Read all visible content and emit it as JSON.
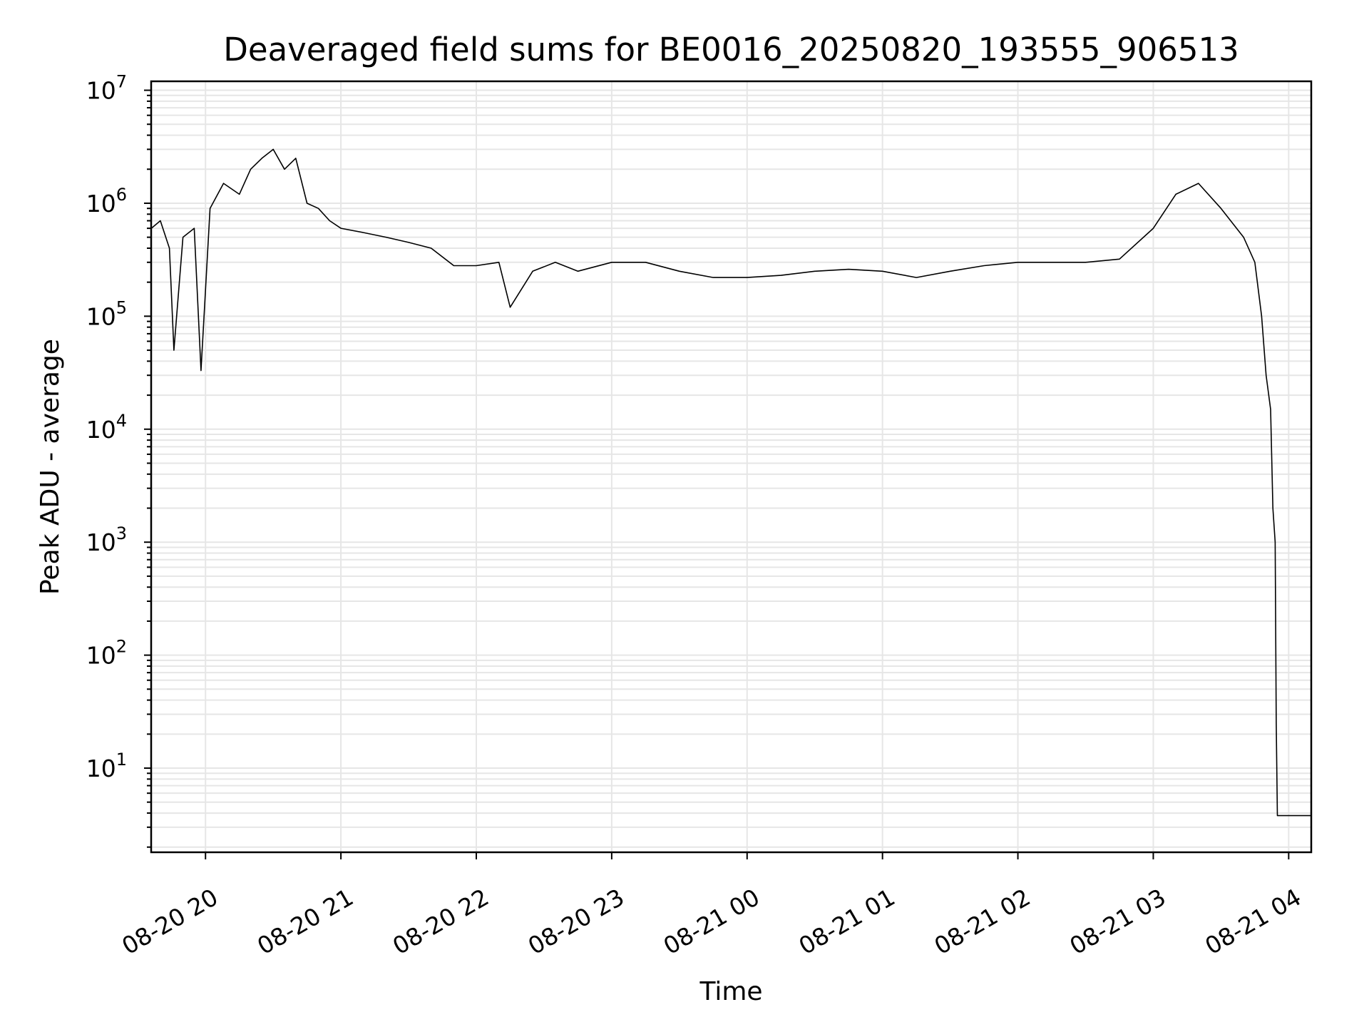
{
  "chart_data": {
    "type": "line",
    "title": "Deaveraged field sums for BE0016_20250820_193555_906513",
    "xlabel": "Time",
    "ylabel": "Peak ADU - average",
    "yscale": "log",
    "grid": true,
    "grid_color": "#e6e6e6",
    "line_color": "#000000",
    "x_start": "2025-08-20 19:35:55",
    "x_end": "2025-08-21 04:10:00",
    "xlim": [
      "2025-08-20 19:35:55",
      "2025-08-21 04:10:00"
    ],
    "ylim": [
      1.8,
      12000000
    ],
    "x_ticks": [
      {
        "value": "2025-08-20 20:00",
        "label": "08-20 20"
      },
      {
        "value": "2025-08-20 21:00",
        "label": "08-20 21"
      },
      {
        "value": "2025-08-20 22:00",
        "label": "08-20 22"
      },
      {
        "value": "2025-08-20 23:00",
        "label": "08-20 23"
      },
      {
        "value": "2025-08-21 00:00",
        "label": "08-21 00"
      },
      {
        "value": "2025-08-21 01:00",
        "label": "08-21 01"
      },
      {
        "value": "2025-08-21 02:00",
        "label": "08-21 02"
      },
      {
        "value": "2025-08-21 03:00",
        "label": "08-21 03"
      },
      {
        "value": "2025-08-21 04:00",
        "label": "08-21 04"
      }
    ],
    "y_ticks": [
      {
        "value": 10,
        "base": "10",
        "exp": "1"
      },
      {
        "value": 100,
        "base": "10",
        "exp": "2"
      },
      {
        "value": 1000,
        "base": "10",
        "exp": "3"
      },
      {
        "value": 10000,
        "base": "10",
        "exp": "4"
      },
      {
        "value": 100000,
        "base": "10",
        "exp": "5"
      },
      {
        "value": 1000000,
        "base": "10",
        "exp": "6"
      },
      {
        "value": 10000000,
        "base": "10",
        "exp": "7"
      }
    ],
    "series": [
      {
        "points": [
          [
            "2025-08-20 19:36",
            600000
          ],
          [
            "2025-08-20 19:40",
            700000
          ],
          [
            "2025-08-20 19:44",
            400000
          ],
          [
            "2025-08-20 19:46",
            50000
          ],
          [
            "2025-08-20 19:50",
            500000
          ],
          [
            "2025-08-20 19:55",
            600000
          ],
          [
            "2025-08-20 19:58",
            33000
          ],
          [
            "2025-08-20 20:02",
            900000
          ],
          [
            "2025-08-20 20:08",
            1500000
          ],
          [
            "2025-08-20 20:15",
            1200000
          ],
          [
            "2025-08-20 20:20",
            2000000
          ],
          [
            "2025-08-20 20:25",
            2500000
          ],
          [
            "2025-08-20 20:30",
            3000000
          ],
          [
            "2025-08-20 20:35",
            2000000
          ],
          [
            "2025-08-20 20:40",
            2500000
          ],
          [
            "2025-08-20 20:45",
            1000000
          ],
          [
            "2025-08-20 20:50",
            900000
          ],
          [
            "2025-08-20 20:55",
            700000
          ],
          [
            "2025-08-20 21:00",
            600000
          ],
          [
            "2025-08-20 21:10",
            550000
          ],
          [
            "2025-08-20 21:20",
            500000
          ],
          [
            "2025-08-20 21:30",
            450000
          ],
          [
            "2025-08-20 21:40",
            400000
          ],
          [
            "2025-08-20 21:50",
            280000
          ],
          [
            "2025-08-20 22:00",
            280000
          ],
          [
            "2025-08-20 22:10",
            300000
          ],
          [
            "2025-08-20 22:15",
            120000
          ],
          [
            "2025-08-20 22:25",
            250000
          ],
          [
            "2025-08-20 22:35",
            300000
          ],
          [
            "2025-08-20 22:45",
            250000
          ],
          [
            "2025-08-20 23:00",
            300000
          ],
          [
            "2025-08-20 23:15",
            300000
          ],
          [
            "2025-08-20 23:30",
            250000
          ],
          [
            "2025-08-20 23:45",
            220000
          ],
          [
            "2025-08-21 00:00",
            220000
          ],
          [
            "2025-08-21 00:15",
            230000
          ],
          [
            "2025-08-21 00:30",
            250000
          ],
          [
            "2025-08-21 00:45",
            260000
          ],
          [
            "2025-08-21 01:00",
            250000
          ],
          [
            "2025-08-21 01:15",
            220000
          ],
          [
            "2025-08-21 01:30",
            250000
          ],
          [
            "2025-08-21 01:45",
            280000
          ],
          [
            "2025-08-21 02:00",
            300000
          ],
          [
            "2025-08-21 02:15",
            300000
          ],
          [
            "2025-08-21 02:30",
            300000
          ],
          [
            "2025-08-21 02:45",
            320000
          ],
          [
            "2025-08-21 03:00",
            600000
          ],
          [
            "2025-08-21 03:10",
            1200000
          ],
          [
            "2025-08-21 03:20",
            1500000
          ],
          [
            "2025-08-21 03:30",
            900000
          ],
          [
            "2025-08-21 03:40",
            500000
          ],
          [
            "2025-08-21 03:45",
            300000
          ],
          [
            "2025-08-21 03:48",
            100000
          ],
          [
            "2025-08-21 03:50",
            30000
          ],
          [
            "2025-08-21 03:52",
            15000
          ],
          [
            "2025-08-21 03:53",
            2000
          ],
          [
            "2025-08-21 03:54",
            1000
          ],
          [
            "2025-08-21 03:54:30",
            25
          ],
          [
            "2025-08-21 03:55",
            3.8
          ],
          [
            "2025-08-21 04:10",
            3.8
          ]
        ]
      }
    ]
  }
}
